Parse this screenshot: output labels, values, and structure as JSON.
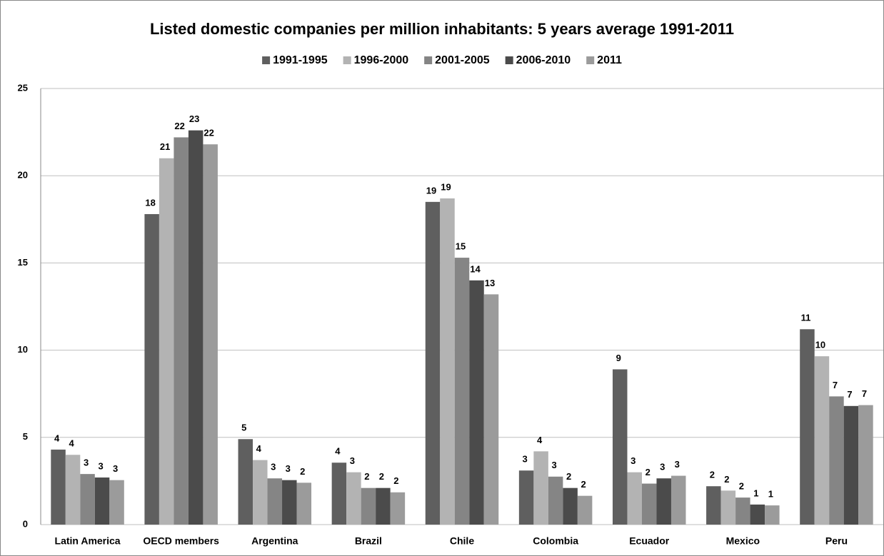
{
  "chart_data": {
    "type": "bar",
    "title": "Listed domestic companies per million inhabitants: 5 years average 1991-2011",
    "categories": [
      "Latin America",
      "OECD members",
      "Argentina",
      "Brazil",
      "Chile",
      "Colombia",
      "Ecuador",
      "Mexico",
      "Peru"
    ],
    "series": [
      {
        "name": "1991-1995",
        "color": "#5f5f5f",
        "values": [
          4.3,
          17.8,
          4.9,
          3.55,
          18.5,
          3.1,
          8.9,
          2.2,
          11.2
        ],
        "value_labels": [
          "4",
          "18",
          "5",
          "4",
          "19",
          "3",
          "9",
          "2",
          "11"
        ]
      },
      {
        "name": "1996-2000",
        "color": "#b3b3b3",
        "values": [
          4.0,
          21.0,
          3.7,
          3.0,
          18.7,
          4.2,
          3.0,
          1.95,
          9.65
        ],
        "value_labels": [
          "4",
          "21",
          "4",
          "3",
          "19",
          "4",
          "3",
          "2",
          "10"
        ]
      },
      {
        "name": "2001-2005",
        "color": "#858585",
        "values": [
          2.9,
          22.2,
          2.65,
          2.1,
          15.3,
          2.75,
          2.35,
          1.55,
          7.35
        ],
        "value_labels": [
          "3",
          "22",
          "3",
          "2",
          "15",
          "3",
          "2",
          "2",
          "7"
        ]
      },
      {
        "name": "2006-2010",
        "color": "#4b4b4b",
        "values": [
          2.7,
          22.6,
          2.55,
          2.1,
          14.0,
          2.1,
          2.65,
          1.15,
          6.8
        ],
        "value_labels": [
          "3",
          "23",
          "3",
          "2",
          "14",
          "2",
          "3",
          "1",
          "7"
        ]
      },
      {
        "name": "2011",
        "color": "#9b9b9b",
        "values": [
          2.55,
          21.8,
          2.4,
          1.85,
          13.2,
          1.65,
          2.8,
          1.1,
          6.85
        ],
        "value_labels": [
          "3",
          "22",
          "2",
          "2",
          "13",
          "2",
          "3",
          "1",
          "7"
        ]
      }
    ],
    "ylim": [
      0,
      25
    ],
    "yticks": [
      0,
      5,
      10,
      15,
      20,
      25
    ],
    "grid": true,
    "legend": "top"
  }
}
